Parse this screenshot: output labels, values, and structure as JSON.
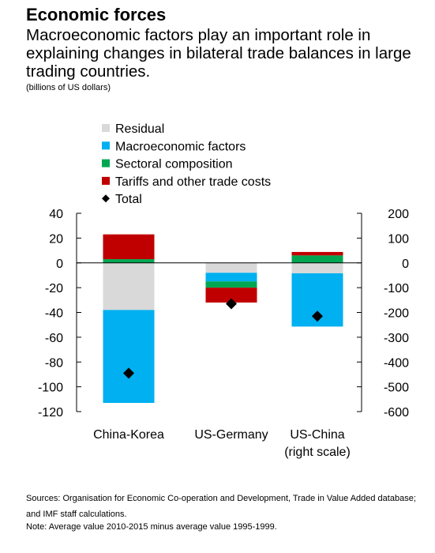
{
  "header": {
    "title": "Economic forces",
    "subtitle": "Macroeconomic factors play an important role in explaining changes in bilateral trade balances in large trading countries.",
    "units": "(billions of US dollars)"
  },
  "footer": {
    "sources": "Sources: Organisation for Economic Co-operation and Development, Trade in Value Added database; and IMF staff calculations.",
    "note": "Note: Average value 2010-2015 minus average value 1995-1999."
  },
  "chart_data": {
    "type": "bar",
    "stacked": true,
    "categories": [
      "China-Korea",
      "US-Germany",
      "US-China\n(right scale)"
    ],
    "category_axis": [
      "left",
      "left",
      "right"
    ],
    "left_axis": {
      "ylim": [
        -120,
        40
      ],
      "ticks": [
        40,
        20,
        0,
        -20,
        -40,
        -60,
        -80,
        -100,
        -120
      ]
    },
    "right_axis": {
      "ylim": [
        -600,
        200
      ],
      "ticks": [
        200,
        100,
        0,
        -100,
        -200,
        -300,
        -400,
        -500,
        -600
      ]
    },
    "legend_position": "top-left",
    "series": [
      {
        "name": "Residual",
        "color": "#d9d9d9",
        "values": [
          -38,
          -8,
          -42
        ]
      },
      {
        "name": "Macroeconomic factors",
        "color": "#00b0f0",
        "values": [
          -75,
          -7,
          -215
        ]
      },
      {
        "name": "Sectoral composition",
        "color": "#00a651",
        "values": [
          3,
          -5,
          30
        ]
      },
      {
        "name": "Tariffs and other trade costs",
        "color": "#c00000",
        "values": [
          20,
          -12,
          14
        ]
      }
    ],
    "total": {
      "name": "Total",
      "marker": "diamond",
      "color": "#000000",
      "values": [
        -89,
        -33,
        -215
      ]
    }
  }
}
